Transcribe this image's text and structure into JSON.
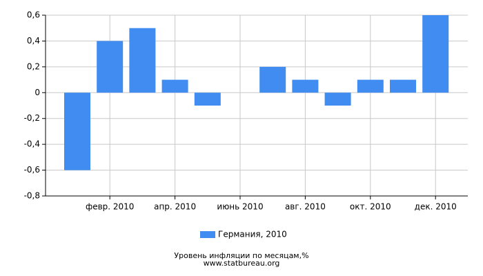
{
  "chart_data": {
    "type": "bar",
    "categories": [
      null,
      "февр. 2010",
      null,
      "апр. 2010",
      null,
      "июнь 2010",
      null,
      "авг. 2010",
      null,
      "окт. 2010",
      null,
      "дек. 2010"
    ],
    "series": [
      {
        "name": "Германия, 2010",
        "color": "#418cf0",
        "values": [
          -0.6,
          0.4,
          0.5,
          0.1,
          -0.1,
          0,
          0.2,
          0.1,
          -0.1,
          0.1,
          0.1,
          0.6
        ]
      }
    ],
    "ylim": [
      -0.8,
      0.6
    ],
    "yticks": [
      {
        "value": 0.6,
        "label": "0,6"
      },
      {
        "value": 0.4,
        "label": "0,4"
      },
      {
        "value": 0.2,
        "label": "0,2"
      },
      0,
      {
        "value": -0.2,
        "label": "-0,2"
      },
      {
        "value": -0.4,
        "label": "-0,4"
      },
      {
        "value": -0.6,
        "label": "-0,6"
      },
      {
        "value": -0.8,
        "label": "-0,8"
      }
    ],
    "grid": true,
    "legend": "bottom",
    "caption": "Уровень инфляции по месяцам,%",
    "source": "www.statbureau.org"
  }
}
